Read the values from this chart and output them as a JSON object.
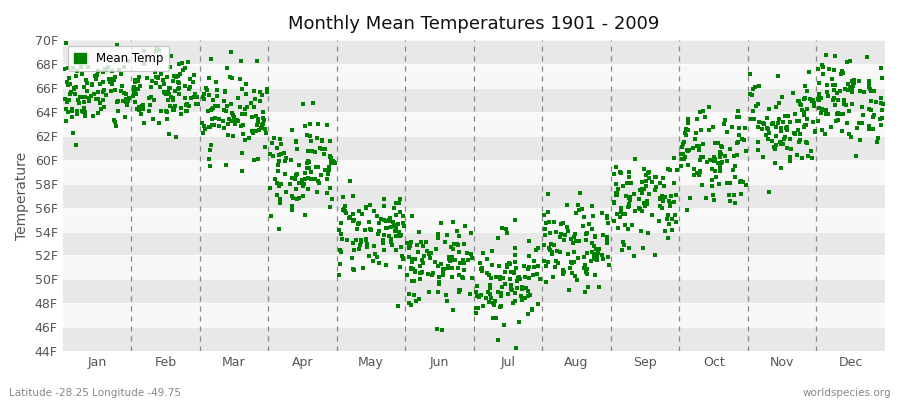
{
  "title": "Monthly Mean Temperatures 1901 - 2009",
  "ylabel": "Temperature",
  "yticks": [
    "44F",
    "46F",
    "48F",
    "50F",
    "52F",
    "54F",
    "56F",
    "58F",
    "60F",
    "62F",
    "64F",
    "66F",
    "68F",
    "70F"
  ],
  "ytick_vals": [
    44,
    46,
    48,
    50,
    52,
    54,
    56,
    58,
    60,
    62,
    64,
    66,
    68,
    70
  ],
  "ylim": [
    44,
    70
  ],
  "months": [
    "Jan",
    "Feb",
    "Mar",
    "Apr",
    "May",
    "Jun",
    "Jul",
    "Aug",
    "Sep",
    "Oct",
    "Nov",
    "Dec"
  ],
  "dot_color": "#008000",
  "bg_color": "#f0f0f0",
  "band_color_even": "#e8e8e8",
  "band_color_odd": "#f8f8f8",
  "vline_color": "#888888",
  "footer_left": "Latitude -28.25 Longitude -49.75",
  "footer_right": "worldspecies.org",
  "legend_label": "Mean Temp",
  "month_means": [
    65.5,
    65.5,
    64.0,
    59.5,
    54.0,
    51.0,
    50.0,
    52.5,
    56.5,
    60.5,
    63.0,
    65.0
  ],
  "month_stds": [
    1.6,
    1.7,
    1.8,
    2.0,
    1.8,
    1.8,
    2.0,
    1.8,
    2.0,
    2.2,
    2.0,
    1.8
  ],
  "n_years": 109
}
